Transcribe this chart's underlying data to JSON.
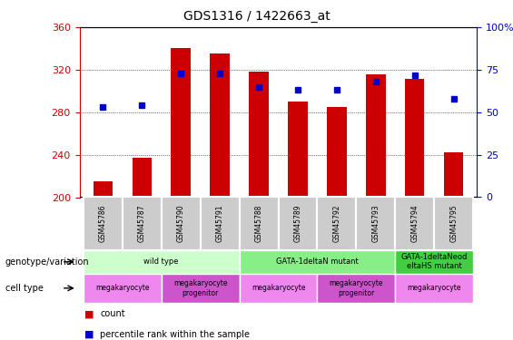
{
  "title": "GDS1316 / 1422663_at",
  "samples": [
    "GSM45786",
    "GSM45787",
    "GSM45790",
    "GSM45791",
    "GSM45788",
    "GSM45789",
    "GSM45792",
    "GSM45793",
    "GSM45794",
    "GSM45795"
  ],
  "counts": [
    215,
    237,
    340,
    335,
    318,
    290,
    285,
    316,
    311,
    242
  ],
  "percentile_ranks": [
    53,
    54,
    73,
    73,
    65,
    63,
    63,
    68,
    72,
    58
  ],
  "ylim_left": [
    200,
    360
  ],
  "ylim_right": [
    0,
    100
  ],
  "yticks_left": [
    200,
    240,
    280,
    320,
    360
  ],
  "yticks_right": [
    0,
    25,
    50,
    75,
    100
  ],
  "bar_color": "#cc0000",
  "dot_color": "#0000cc",
  "genotype_groups": [
    {
      "label": "wild type",
      "start": 0,
      "end": 4,
      "color": "#ccffcc"
    },
    {
      "label": "GATA-1deltaN mutant",
      "start": 4,
      "end": 8,
      "color": "#88ee88"
    },
    {
      "label": "GATA-1deltaNeod\neltaHS mutant",
      "start": 8,
      "end": 10,
      "color": "#44cc44"
    }
  ],
  "cell_type_groups": [
    {
      "label": "megakaryocyte",
      "start": 0,
      "end": 2,
      "color": "#ee88ee"
    },
    {
      "label": "megakaryocyte\nprogenitor",
      "start": 2,
      "end": 4,
      "color": "#cc55cc"
    },
    {
      "label": "megakaryocyte",
      "start": 4,
      "end": 6,
      "color": "#ee88ee"
    },
    {
      "label": "megakaryocyte\nprogenitor",
      "start": 6,
      "end": 8,
      "color": "#cc55cc"
    },
    {
      "label": "megakaryocyte",
      "start": 8,
      "end": 10,
      "color": "#ee88ee"
    }
  ],
  "left_ylabel_color": "#cc0000",
  "right_ylabel_color": "#0000cc",
  "tick_label_bg": "#cccccc"
}
